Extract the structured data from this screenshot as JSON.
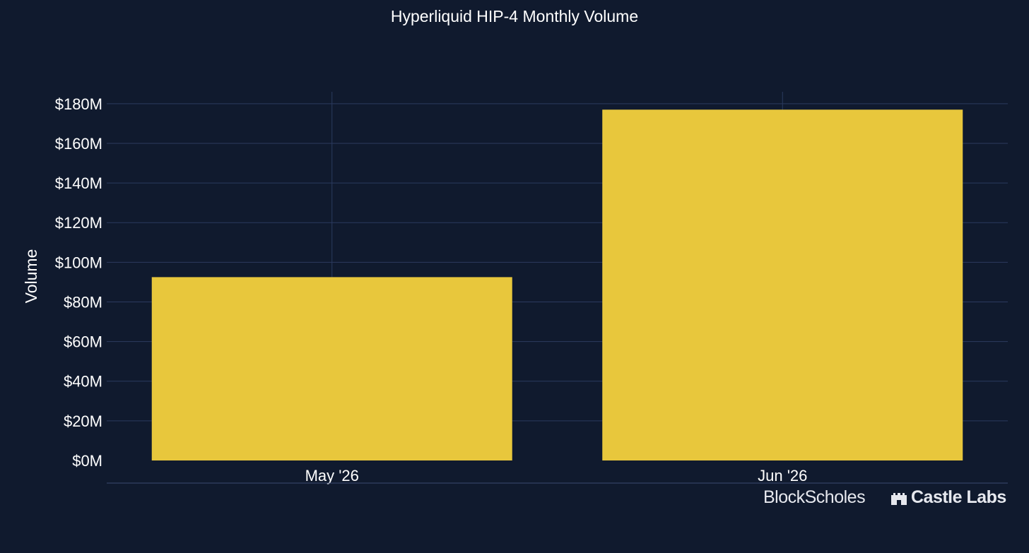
{
  "chart_data": {
    "type": "bar",
    "title": "Hyperliquid HIP-4 Monthly Volume",
    "xlabel": "",
    "ylabel": "Volume",
    "categories": [
      "May '26",
      "Jun '26"
    ],
    "values": [
      92.5,
      177
    ],
    "ylim": [
      0,
      186
    ],
    "yticks": [
      0,
      20,
      40,
      60,
      80,
      100,
      120,
      140,
      160,
      180
    ],
    "ytick_labels": [
      "$0M",
      "$20M",
      "$40M",
      "$60M",
      "$80M",
      "$100M",
      "$120M",
      "$140M",
      "$160M",
      "$180M"
    ],
    "bar_color": "#e8c73c",
    "grid": true,
    "legend": "none"
  },
  "colors": {
    "background": "#101a2e",
    "grid": "#2b3a5e",
    "text": "#ffffff"
  },
  "branding": {
    "blockscholes": "BlockScholes",
    "castlelabs": "Castle Labs",
    "castlelabs_icon": "castle-icon"
  }
}
